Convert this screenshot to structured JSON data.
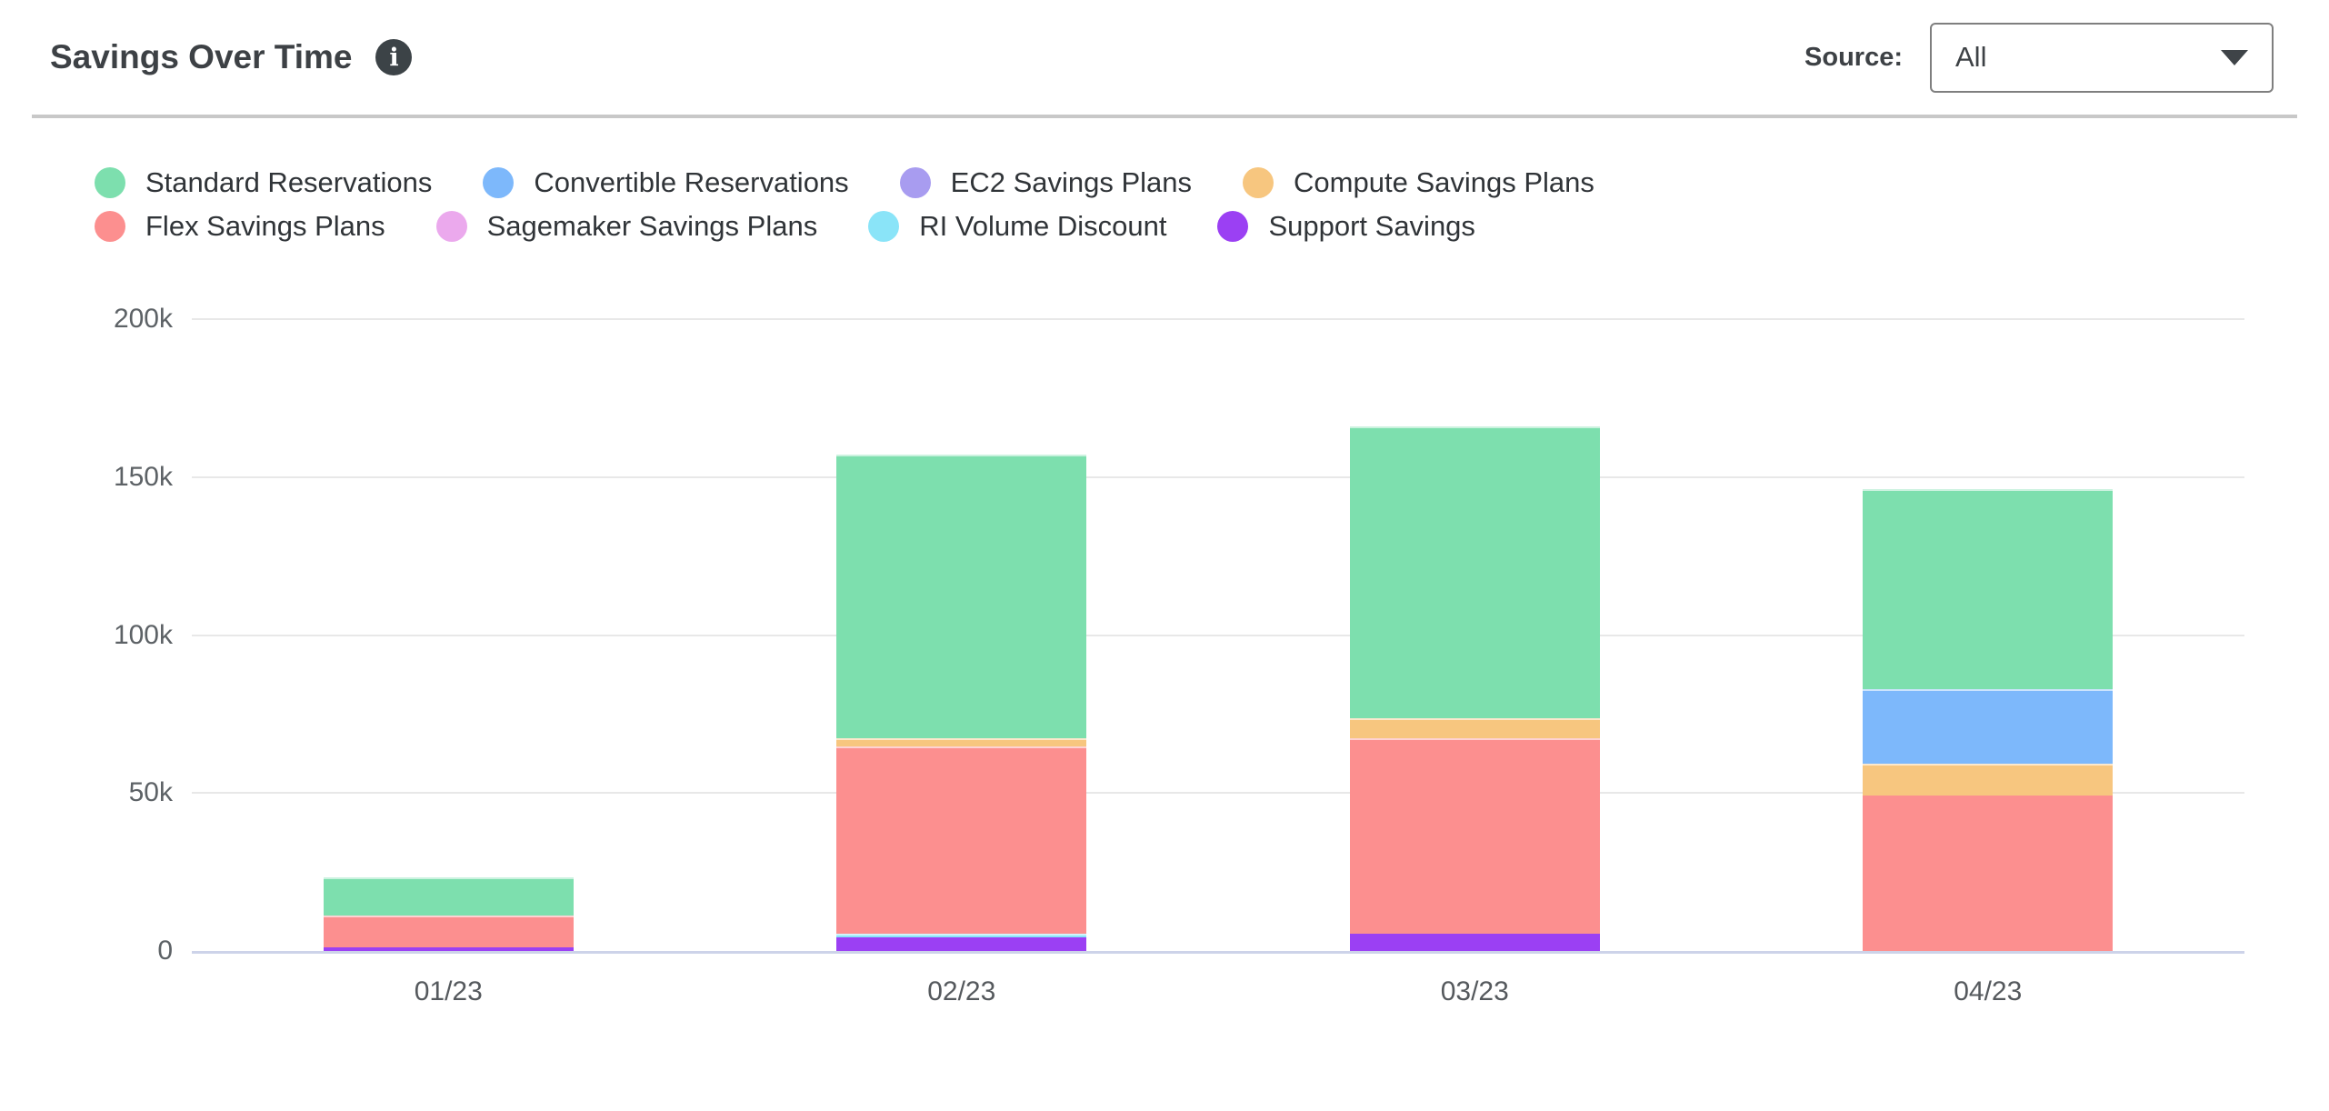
{
  "header": {
    "title": "Savings Over Time",
    "info_icon": "i",
    "source_label": "Source:",
    "source_value": "All"
  },
  "legend": {
    "items": [
      {
        "label": "Standard Reservations",
        "color": "#7ddfae"
      },
      {
        "label": "Convertible Reservations",
        "color": "#7db8fb"
      },
      {
        "label": "EC2 Savings Plans",
        "color": "#a89cf0"
      },
      {
        "label": "Compute Savings Plans",
        "color": "#f7c67f"
      },
      {
        "label": "Flex Savings Plans",
        "color": "#fc8f8f"
      },
      {
        "label": "Sagemaker Savings Plans",
        "color": "#eba9ed"
      },
      {
        "label": "RI Volume Discount",
        "color": "#8ae4f8"
      },
      {
        "label": "Support Savings",
        "color": "#9b40f3"
      }
    ]
  },
  "chart_data": {
    "type": "bar",
    "stacked": true,
    "stack_order": "bottom_to_top",
    "title": "Savings Over Time",
    "categories": [
      "01/23",
      "02/23",
      "03/23",
      "04/23"
    ],
    "series": [
      {
        "name": "Support Savings",
        "color": "#9b40f3",
        "values": [
          1200,
          4300,
          5500,
          0
        ]
      },
      {
        "name": "RI Volume Discount",
        "color": "#8ae4f8",
        "values": [
          0,
          1100,
          0,
          0
        ]
      },
      {
        "name": "Sagemaker Savings Plans",
        "color": "#eba9ed",
        "values": [
          0,
          0,
          0,
          0
        ]
      },
      {
        "name": "Flex Savings Plans",
        "color": "#fc8f8f",
        "values": [
          9900,
          59400,
          61800,
          49100
        ]
      },
      {
        "name": "Compute Savings Plans",
        "color": "#f7c67f",
        "values": [
          0,
          2500,
          6300,
          10200
        ]
      },
      {
        "name": "EC2 Savings Plans",
        "color": "#a89cf0",
        "values": [
          0,
          0,
          0,
          0
        ]
      },
      {
        "name": "Convertible Reservations",
        "color": "#7db8fb",
        "values": [
          0,
          0,
          0,
          23500
        ]
      },
      {
        "name": "Standard Reservations",
        "color": "#7ddfae",
        "values": [
          12200,
          89700,
          92400,
          63300
        ]
      }
    ],
    "totals": [
      23300,
      157000,
      166000,
      146100
    ],
    "y_ticks": [
      {
        "label": "0",
        "value": 0
      },
      {
        "label": "50k",
        "value": 50000
      },
      {
        "label": "100k",
        "value": 100000
      },
      {
        "label": "150k",
        "value": 150000
      },
      {
        "label": "200k",
        "value": 200000
      }
    ],
    "ylim": [
      0,
      200000
    ],
    "xlabel": "",
    "ylabel": "",
    "grid": true,
    "legend_position": "top",
    "colors": {
      "gridline": "#e8e8e8",
      "axis_line": "#cdd3e9",
      "axis_text": "#5d6266"
    }
  }
}
